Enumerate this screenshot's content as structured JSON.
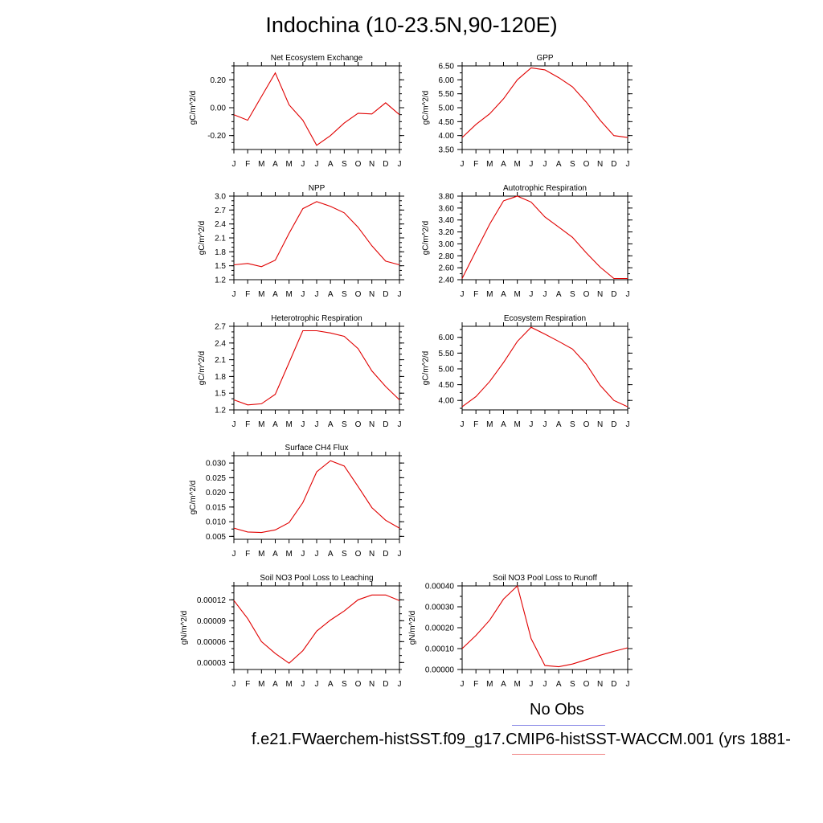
{
  "main_title": "Indochina (10-23.5N,90-120E)",
  "months": [
    "J",
    "F",
    "M",
    "A",
    "M",
    "J",
    "J",
    "A",
    "S",
    "O",
    "N",
    "D",
    "J"
  ],
  "legend": {
    "obs_label": "No Obs",
    "obs_color": "#8a8ae6",
    "model_label": "f.e21.FWaerchem-histSST.f09_g17.CMIP6-histSST-WACCM.001 (yrs 1881-",
    "model_color": "#f08080"
  },
  "line_color": "#e00000",
  "chart_data": [
    {
      "type": "line",
      "title": "Net Ecosystem Exchange",
      "ylabel": "gC/m^2/d",
      "ylim": [
        -0.3,
        0.3
      ],
      "yticks": [
        -0.2,
        0.0,
        0.2
      ],
      "ytick_labels": [
        "-0.20",
        "0.00",
        "0.20"
      ],
      "minor_step": 0.05,
      "x": [
        "J",
        "F",
        "M",
        "A",
        "M",
        "J",
        "J",
        "A",
        "S",
        "O",
        "N",
        "D",
        "J"
      ],
      "values": [
        -0.05,
        -0.09,
        0.08,
        0.25,
        0.02,
        -0.09,
        -0.27,
        -0.2,
        -0.11,
        -0.04,
        -0.045,
        0.035,
        -0.05
      ]
    },
    {
      "type": "line",
      "title": "GPP",
      "ylabel": "gC/m^2/d",
      "ylim": [
        3.5,
        6.5
      ],
      "yticks": [
        3.5,
        4.0,
        4.5,
        5.0,
        5.5,
        6.0,
        6.5
      ],
      "ytick_labels": [
        "3.50",
        "4.00",
        "4.50",
        "5.00",
        "5.50",
        "6.00",
        "6.50"
      ],
      "minor_step": 0.25,
      "x": [
        "J",
        "F",
        "M",
        "A",
        "M",
        "J",
        "J",
        "A",
        "S",
        "O",
        "N",
        "D",
        "J"
      ],
      "values": [
        3.93,
        4.4,
        4.78,
        5.32,
        6.0,
        6.43,
        6.36,
        6.08,
        5.75,
        5.2,
        4.55,
        4.0,
        3.93
      ]
    },
    {
      "type": "line",
      "title": "NPP",
      "ylabel": "gC/m^2/d",
      "ylim": [
        1.2,
        3.0
      ],
      "yticks": [
        1.2,
        1.5,
        1.8,
        2.1,
        2.4,
        2.7,
        3.0
      ],
      "ytick_labels": [
        "1.2",
        "1.5",
        "1.8",
        "2.1",
        "2.4",
        "2.7",
        "3.0"
      ],
      "minor_step": 0.1,
      "x": [
        "J",
        "F",
        "M",
        "A",
        "M",
        "J",
        "J",
        "A",
        "S",
        "O",
        "N",
        "D",
        "J"
      ],
      "values": [
        1.52,
        1.55,
        1.48,
        1.62,
        2.2,
        2.73,
        2.88,
        2.78,
        2.64,
        2.33,
        1.93,
        1.6,
        1.52
      ]
    },
    {
      "type": "line",
      "title": "Autotrophic Respiration",
      "ylabel": "gC/m^2/d",
      "ylim": [
        2.4,
        3.8
      ],
      "yticks": [
        2.4,
        2.6,
        2.8,
        3.0,
        3.2,
        3.4,
        3.6,
        3.8
      ],
      "ytick_labels": [
        "2.40",
        "2.60",
        "2.80",
        "3.00",
        "3.20",
        "3.40",
        "3.60",
        "3.80"
      ],
      "minor_step": 0.1,
      "x": [
        "J",
        "F",
        "M",
        "A",
        "M",
        "J",
        "J",
        "A",
        "S",
        "O",
        "N",
        "D",
        "J"
      ],
      "values": [
        2.42,
        2.88,
        3.33,
        3.72,
        3.8,
        3.7,
        3.45,
        3.28,
        3.11,
        2.85,
        2.61,
        2.42,
        2.42
      ]
    },
    {
      "type": "line",
      "title": "Heterotrophic Respiration",
      "ylabel": "gC/m^2/d",
      "ylim": [
        1.2,
        2.7
      ],
      "yticks": [
        1.2,
        1.5,
        1.8,
        2.1,
        2.4,
        2.7
      ],
      "ytick_labels": [
        "1.2",
        "1.5",
        "1.8",
        "2.1",
        "2.4",
        "2.7"
      ],
      "minor_step": 0.1,
      "x": [
        "J",
        "F",
        "M",
        "A",
        "M",
        "J",
        "J",
        "A",
        "S",
        "O",
        "N",
        "D",
        "J"
      ],
      "values": [
        1.38,
        1.29,
        1.31,
        1.48,
        2.05,
        2.62,
        2.62,
        2.58,
        2.52,
        2.3,
        1.9,
        1.62,
        1.38
      ]
    },
    {
      "type": "line",
      "title": "Ecosystem Respiration",
      "ylabel": "gC/m^2/d",
      "ylim": [
        3.7,
        6.35
      ],
      "yticks": [
        4.0,
        4.5,
        5.0,
        5.5,
        6.0
      ],
      "ytick_labels": [
        "4.00",
        "4.50",
        "5.00",
        "5.50",
        "6.00"
      ],
      "minor_step": 0.25,
      "x": [
        "J",
        "F",
        "M",
        "A",
        "M",
        "J",
        "J",
        "A",
        "S",
        "O",
        "N",
        "D",
        "J"
      ],
      "values": [
        3.8,
        4.12,
        4.6,
        5.2,
        5.87,
        6.32,
        6.1,
        5.87,
        5.63,
        5.15,
        4.48,
        4.0,
        3.8
      ]
    },
    {
      "type": "line",
      "title": "Surface CH4 Flux",
      "ylabel": "gC/m^2/d",
      "ylim": [
        0.004,
        0.0325
      ],
      "yticks": [
        0.005,
        0.01,
        0.015,
        0.02,
        0.025,
        0.03
      ],
      "ytick_labels": [
        "0.005",
        "0.010",
        "0.015",
        "0.020",
        "0.025",
        "0.030"
      ],
      "minor_step": 0.0025,
      "x": [
        "J",
        "F",
        "M",
        "A",
        "M",
        "J",
        "J",
        "A",
        "S",
        "O",
        "N",
        "D",
        "J"
      ],
      "values": [
        0.0078,
        0.0065,
        0.0063,
        0.0072,
        0.0097,
        0.0165,
        0.027,
        0.0308,
        0.029,
        0.022,
        0.0148,
        0.0105,
        0.0078
      ]
    },
    {
      "type": "line",
      "title": "Soil NO3 Pool Loss to Leaching",
      "ylabel": "gN/m^2/d",
      "ylim": [
        2e-05,
        0.00014
      ],
      "yticks": [
        3e-05,
        6e-05,
        9e-05,
        0.00012
      ],
      "ytick_labels": [
        "0.00003",
        "0.00006",
        "0.00009",
        "0.00012"
      ],
      "minor_step": 1e-05,
      "x": [
        "J",
        "F",
        "M",
        "A",
        "M",
        "J",
        "J",
        "A",
        "S",
        "O",
        "N",
        "D",
        "J"
      ],
      "values": [
        0.000119,
        9.3e-05,
        6e-05,
        4.3e-05,
        2.9e-05,
        4.7e-05,
        7.5e-05,
        9.1e-05,
        0.000104,
        0.00012,
        0.000127,
        0.000127,
        0.000119
      ]
    },
    {
      "type": "line",
      "title": "Soil NO3 Pool Loss to Runoff",
      "ylabel": "gN/m^2/d",
      "ylim": [
        0.0,
        0.0004
      ],
      "yticks": [
        0.0,
        0.0001,
        0.0002,
        0.0003,
        0.0004
      ],
      "ytick_labels": [
        "0.00000",
        "0.00010",
        "0.00020",
        "0.00030",
        "0.00040"
      ],
      "minor_step": 5e-05,
      "x": [
        "J",
        "F",
        "M",
        "A",
        "M",
        "J",
        "J",
        "A",
        "S",
        "O",
        "N",
        "D",
        "J"
      ],
      "values": [
        0.0001,
        0.000163,
        0.000236,
        0.000337,
        0.0004,
        0.000148,
        1.9e-05,
        1.3e-05,
        2.6e-05,
        4.7e-05,
        6.8e-05,
        8.7e-05,
        0.000104
      ]
    }
  ]
}
